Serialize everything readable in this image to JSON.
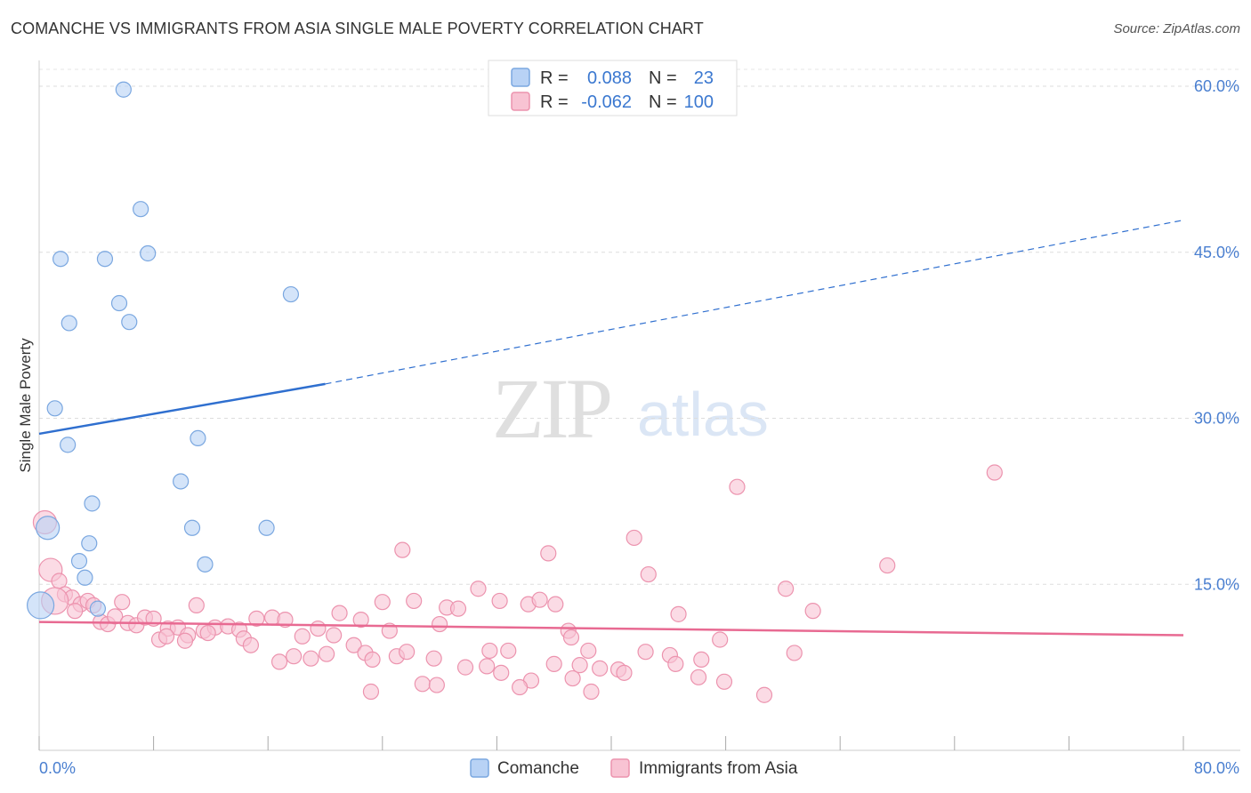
{
  "header": {
    "title": "COMANCHE VS IMMIGRANTS FROM ASIA SINGLE MALE POVERTY CORRELATION CHART",
    "source": "Source: ZipAtlas.com"
  },
  "watermark": {
    "zip": "ZIP",
    "atlas": "atlas"
  },
  "colors": {
    "comanche_fill": "#b8d2f5",
    "comanche_stroke": "#7aa7e0",
    "comanche_line": "#2f6fcf",
    "asia_fill": "#f8c3d3",
    "asia_stroke": "#ec93ae",
    "asia_line": "#e86a92",
    "tick_text": "#4a7fd0",
    "grid": "#dddddd"
  },
  "legend_top": {
    "rows": [
      {
        "r_label": "R =",
        "r_value": "0.088",
        "n_label": "N =",
        "n_value": "23"
      },
      {
        "r_label": "R =",
        "r_value": "-0.062",
        "n_label": "N =",
        "n_value": "100"
      }
    ]
  },
  "chart_data": {
    "type": "scatter",
    "title": "COMANCHE VS IMMIGRANTS FROM ASIA SINGLE MALE POVERTY CORRELATION CHART",
    "xlabel": "",
    "ylabel": "Single Male Poverty",
    "xlim": [
      0,
      80
    ],
    "ylim": [
      0,
      60
    ],
    "x_tick_labels": [
      "0.0%",
      "80.0%"
    ],
    "y_ticks": [
      15,
      30,
      45,
      60
    ],
    "y_tick_labels": [
      "15.0%",
      "30.0%",
      "45.0%",
      "60.0%"
    ],
    "grid": true,
    "legend_position": "top-center",
    "series": [
      {
        "name": "Comanche",
        "R": 0.088,
        "N": 23,
        "trend": {
          "x0": 0,
          "y0": 28.6,
          "x1": 20,
          "y1": 33.1,
          "dash_to_x": 80,
          "dash_to_y": 47.9
        },
        "points": [
          {
            "x": 5.9,
            "y": 59.7
          },
          {
            "x": 7.1,
            "y": 48.9
          },
          {
            "x": 1.5,
            "y": 44.4
          },
          {
            "x": 4.6,
            "y": 44.4
          },
          {
            "x": 7.6,
            "y": 44.9
          },
          {
            "x": 17.6,
            "y": 41.2
          },
          {
            "x": 5.6,
            "y": 40.4
          },
          {
            "x": 2.1,
            "y": 38.6
          },
          {
            "x": 6.3,
            "y": 38.7
          },
          {
            "x": 1.1,
            "y": 30.9
          },
          {
            "x": 2.0,
            "y": 27.6
          },
          {
            "x": 11.1,
            "y": 28.2
          },
          {
            "x": 9.9,
            "y": 24.3
          },
          {
            "x": 3.7,
            "y": 22.3
          },
          {
            "x": 0.6,
            "y": 20.1
          },
          {
            "x": 10.7,
            "y": 20.1
          },
          {
            "x": 15.9,
            "y": 20.1
          },
          {
            "x": 3.5,
            "y": 18.7
          },
          {
            "x": 2.8,
            "y": 17.1
          },
          {
            "x": 11.6,
            "y": 16.8
          },
          {
            "x": 3.2,
            "y": 15.6
          },
          {
            "x": 0.1,
            "y": 13.1
          },
          {
            "x": 4.1,
            "y": 12.8
          }
        ]
      },
      {
        "name": "Immigrants from Asia",
        "R": -0.062,
        "N": 100,
        "trend": {
          "x0": 0,
          "y0": 11.6,
          "x1": 80,
          "y1": 10.4
        },
        "points": [
          {
            "x": 66.8,
            "y": 25.1
          },
          {
            "x": 48.8,
            "y": 23.8
          },
          {
            "x": 0.4,
            "y": 20.6
          },
          {
            "x": 41.6,
            "y": 19.2
          },
          {
            "x": 25.4,
            "y": 18.1
          },
          {
            "x": 35.6,
            "y": 17.8
          },
          {
            "x": 59.3,
            "y": 16.7
          },
          {
            "x": 42.6,
            "y": 15.9
          },
          {
            "x": 0.8,
            "y": 16.3
          },
          {
            "x": 1.4,
            "y": 15.3
          },
          {
            "x": 52.2,
            "y": 14.6
          },
          {
            "x": 30.7,
            "y": 14.6
          },
          {
            "x": 1.8,
            "y": 14.1
          },
          {
            "x": 2.3,
            "y": 13.8
          },
          {
            "x": 2.9,
            "y": 13.2
          },
          {
            "x": 3.4,
            "y": 13.5
          },
          {
            "x": 3.8,
            "y": 13.1
          },
          {
            "x": 5.8,
            "y": 13.4
          },
          {
            "x": 11.0,
            "y": 13.1
          },
          {
            "x": 24.0,
            "y": 13.4
          },
          {
            "x": 26.2,
            "y": 13.5
          },
          {
            "x": 28.5,
            "y": 12.9
          },
          {
            "x": 29.3,
            "y": 12.8
          },
          {
            "x": 32.2,
            "y": 13.5
          },
          {
            "x": 34.2,
            "y": 13.2
          },
          {
            "x": 35.0,
            "y": 13.6
          },
          {
            "x": 36.1,
            "y": 13.2
          },
          {
            "x": 54.1,
            "y": 12.6
          },
          {
            "x": 44.7,
            "y": 12.3
          },
          {
            "x": 4.3,
            "y": 11.6
          },
          {
            "x": 4.8,
            "y": 11.4
          },
          {
            "x": 5.3,
            "y": 12.1
          },
          {
            "x": 6.2,
            "y": 11.5
          },
          {
            "x": 6.8,
            "y": 11.3
          },
          {
            "x": 7.4,
            "y": 12.0
          },
          {
            "x": 8.0,
            "y": 11.9
          },
          {
            "x": 9.0,
            "y": 11.0
          },
          {
            "x": 9.7,
            "y": 11.1
          },
          {
            "x": 10.4,
            "y": 10.4
          },
          {
            "x": 11.5,
            "y": 10.8
          },
          {
            "x": 12.3,
            "y": 11.1
          },
          {
            "x": 13.2,
            "y": 11.2
          },
          {
            "x": 14.0,
            "y": 10.9
          },
          {
            "x": 15.2,
            "y": 11.9
          },
          {
            "x": 16.3,
            "y": 12.0
          },
          {
            "x": 17.2,
            "y": 11.8
          },
          {
            "x": 18.4,
            "y": 10.3
          },
          {
            "x": 19.5,
            "y": 11.0
          },
          {
            "x": 21.0,
            "y": 12.4
          },
          {
            "x": 22.5,
            "y": 11.8
          },
          {
            "x": 24.5,
            "y": 10.8
          },
          {
            "x": 28.0,
            "y": 11.4
          },
          {
            "x": 37.0,
            "y": 10.8
          },
          {
            "x": 8.4,
            "y": 10.0
          },
          {
            "x": 10.2,
            "y": 9.9
          },
          {
            "x": 14.3,
            "y": 10.1
          },
          {
            "x": 14.8,
            "y": 9.5
          },
          {
            "x": 20.6,
            "y": 10.4
          },
          {
            "x": 22.0,
            "y": 9.5
          },
          {
            "x": 37.2,
            "y": 10.2
          },
          {
            "x": 47.6,
            "y": 10.0
          },
          {
            "x": 8.9,
            "y": 10.3
          },
          {
            "x": 11.8,
            "y": 10.6
          },
          {
            "x": 16.8,
            "y": 8.0
          },
          {
            "x": 17.8,
            "y": 8.5
          },
          {
            "x": 19.0,
            "y": 8.3
          },
          {
            "x": 20.1,
            "y": 8.7
          },
          {
            "x": 22.8,
            "y": 8.8
          },
          {
            "x": 23.3,
            "y": 8.2
          },
          {
            "x": 25.0,
            "y": 8.5
          },
          {
            "x": 25.7,
            "y": 8.9
          },
          {
            "x": 27.6,
            "y": 8.3
          },
          {
            "x": 31.5,
            "y": 9.0
          },
          {
            "x": 32.8,
            "y": 9.0
          },
          {
            "x": 36.0,
            "y": 7.8
          },
          {
            "x": 37.8,
            "y": 7.7
          },
          {
            "x": 38.4,
            "y": 9.0
          },
          {
            "x": 42.4,
            "y": 8.9
          },
          {
            "x": 44.1,
            "y": 8.6
          },
          {
            "x": 44.5,
            "y": 7.8
          },
          {
            "x": 46.3,
            "y": 8.2
          },
          {
            "x": 52.8,
            "y": 8.8
          },
          {
            "x": 29.8,
            "y": 7.5
          },
          {
            "x": 31.3,
            "y": 7.6
          },
          {
            "x": 32.3,
            "y": 7.0
          },
          {
            "x": 39.2,
            "y": 7.4
          },
          {
            "x": 40.5,
            "y": 7.3
          },
          {
            "x": 40.9,
            "y": 7.0
          },
          {
            "x": 37.3,
            "y": 6.5
          },
          {
            "x": 34.4,
            "y": 6.3
          },
          {
            "x": 33.6,
            "y": 5.7
          },
          {
            "x": 26.8,
            "y": 6.0
          },
          {
            "x": 27.8,
            "y": 5.9
          },
          {
            "x": 46.1,
            "y": 6.6
          },
          {
            "x": 47.9,
            "y": 6.2
          },
          {
            "x": 23.2,
            "y": 5.3
          },
          {
            "x": 38.6,
            "y": 5.3
          },
          {
            "x": 50.7,
            "y": 5.0
          },
          {
            "x": 1.1,
            "y": 13.5
          },
          {
            "x": 2.5,
            "y": 12.6
          }
        ]
      }
    ]
  }
}
